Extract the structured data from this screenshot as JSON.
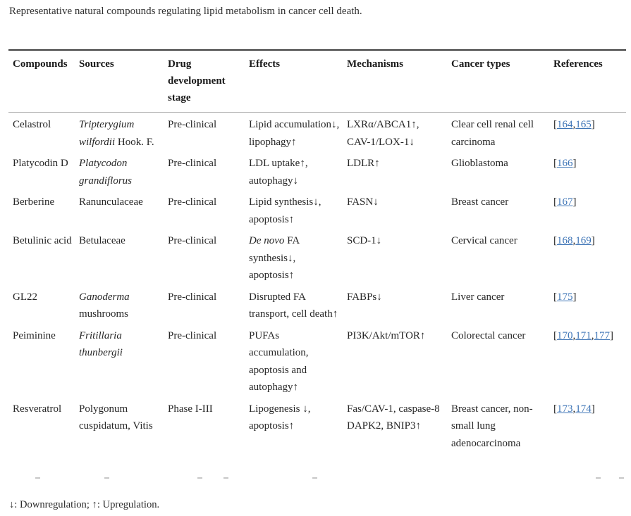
{
  "theme": {
    "link_color": "#3d74b6",
    "rule_dark": "#404040",
    "rule_light": "#b0b0b0"
  },
  "page": {
    "caption": "Representative natural compounds regulating lipid metabolism in cancer cell death.",
    "footnote": "↓: Downregulation; ↑: Upregulation."
  },
  "table": {
    "columns": [
      "Compounds",
      "Sources",
      "Drug development stage",
      "Effects",
      "Mechanisms",
      "Cancer types",
      "References"
    ],
    "rows": [
      {
        "compound": "Celastrol",
        "source": [
          {
            "text": "Tripterygium wilfordii",
            "italic": true
          },
          {
            "text": " Hook. F.",
            "italic": false
          }
        ],
        "stage": "Pre-clinical",
        "effects": [
          {
            "text": "Lipid accumulation↓, lipophagy↑",
            "italic": false
          }
        ],
        "mechanisms": "LXRα/ABCA1↑, CAV-1/LOX-1↓",
        "cancer_types": "Clear cell renal cell carcinoma",
        "references": [
          "164",
          "165"
        ]
      },
      {
        "compound": "Platycodin D",
        "source": [
          {
            "text": "Platycodon grandiflorus",
            "italic": true
          }
        ],
        "stage": "Pre-clinical",
        "effects": [
          {
            "text": "LDL uptake↑, autophagy↓",
            "italic": false
          }
        ],
        "mechanisms": "LDLR↑",
        "cancer_types": "Glioblastoma",
        "references": [
          "166"
        ]
      },
      {
        "compound": "Berberine",
        "source": [
          {
            "text": "Ranunculaceae",
            "italic": false
          }
        ],
        "stage": "Pre-clinical",
        "effects": [
          {
            "text": "Lipid synthesis↓, apoptosis↑",
            "italic": false
          }
        ],
        "mechanisms": "FASN↓",
        "cancer_types": "Breast cancer",
        "references": [
          "167"
        ]
      },
      {
        "compound": "Betulinic acid",
        "source": [
          {
            "text": "Betulaceae",
            "italic": false
          }
        ],
        "stage": "Pre-clinical",
        "effects": [
          {
            "text": "De novo",
            "italic": true
          },
          {
            "text": " FA synthesis↓, apoptosis↑",
            "italic": false
          }
        ],
        "mechanisms": "SCD-1↓",
        "cancer_types": "Cervical cancer",
        "references": [
          "168",
          "169"
        ]
      },
      {
        "compound": "GL22",
        "source": [
          {
            "text": "Ganoderma",
            "italic": true
          },
          {
            "text": " mushrooms",
            "italic": false
          }
        ],
        "stage": "Pre-clinical",
        "effects": [
          {
            "text": "Disrupted FA transport, cell death↑",
            "italic": false
          }
        ],
        "mechanisms": "FABPs↓",
        "cancer_types": "Liver cancer",
        "references": [
          "175"
        ]
      },
      {
        "compound": "Peiminine",
        "source": [
          {
            "text": "Fritillaria thunbergii",
            "italic": true
          }
        ],
        "stage": "Pre-clinical",
        "effects": [
          {
            "text": "PUFAs accumulation, apoptosis and autophagy↑",
            "italic": false
          }
        ],
        "mechanisms": "PI3K/Akt/mTOR↑",
        "cancer_types": "Colorectal cancer",
        "references": [
          "170",
          "171",
          "177"
        ]
      },
      {
        "compound": "Resveratrol",
        "source": [
          {
            "text": "Polygonum cuspidatum, Vitis",
            "italic": false
          }
        ],
        "stage": "Phase I-III",
        "effects": [
          {
            "text": "Lipogenesis ↓, apoptosis↑",
            "italic": false
          }
        ],
        "mechanisms": "Fas/CAV-1, caspase-8 DAPK2, BNIP3↑",
        "cancer_types": "Breast cancer, non-small lung adenocarcinoma",
        "references": [
          "173",
          "174"
        ]
      }
    ]
  }
}
